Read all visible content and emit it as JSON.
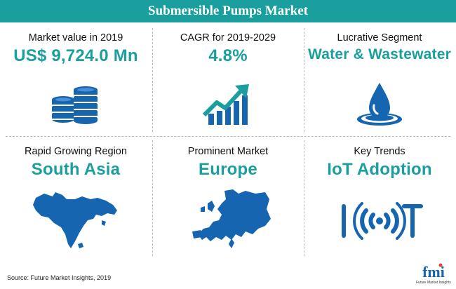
{
  "title": "Submersible Pumps Market",
  "cells": [
    {
      "label": "Market value in 2019",
      "value": "US$ 9,724.0 Mn",
      "icon": "coins-stack-icon"
    },
    {
      "label": "CAGR for 2019-2029",
      "value": "4.8%",
      "icon": "growth-chart-icon"
    },
    {
      "label": "Lucrative Segment",
      "value": "Water & Wastewater",
      "icon": "water-drop-icon"
    },
    {
      "label": "Rapid Growing Region",
      "value": "South Asia",
      "icon": "south-asia-map-icon"
    },
    {
      "label": "Prominent Market",
      "value": "Europe",
      "icon": "europe-map-icon"
    },
    {
      "label": "Key Trends",
      "value": "IoT Adoption",
      "icon": "iot-icon"
    }
  ],
  "source": "Source: Future Market Insights, 2019",
  "logo": {
    "letters": "fmi",
    "caption": "Future Market Insights"
  },
  "colors": {
    "accent": "#1a9e9e",
    "icon_blue": "#1565b0",
    "text": "#111111"
  }
}
